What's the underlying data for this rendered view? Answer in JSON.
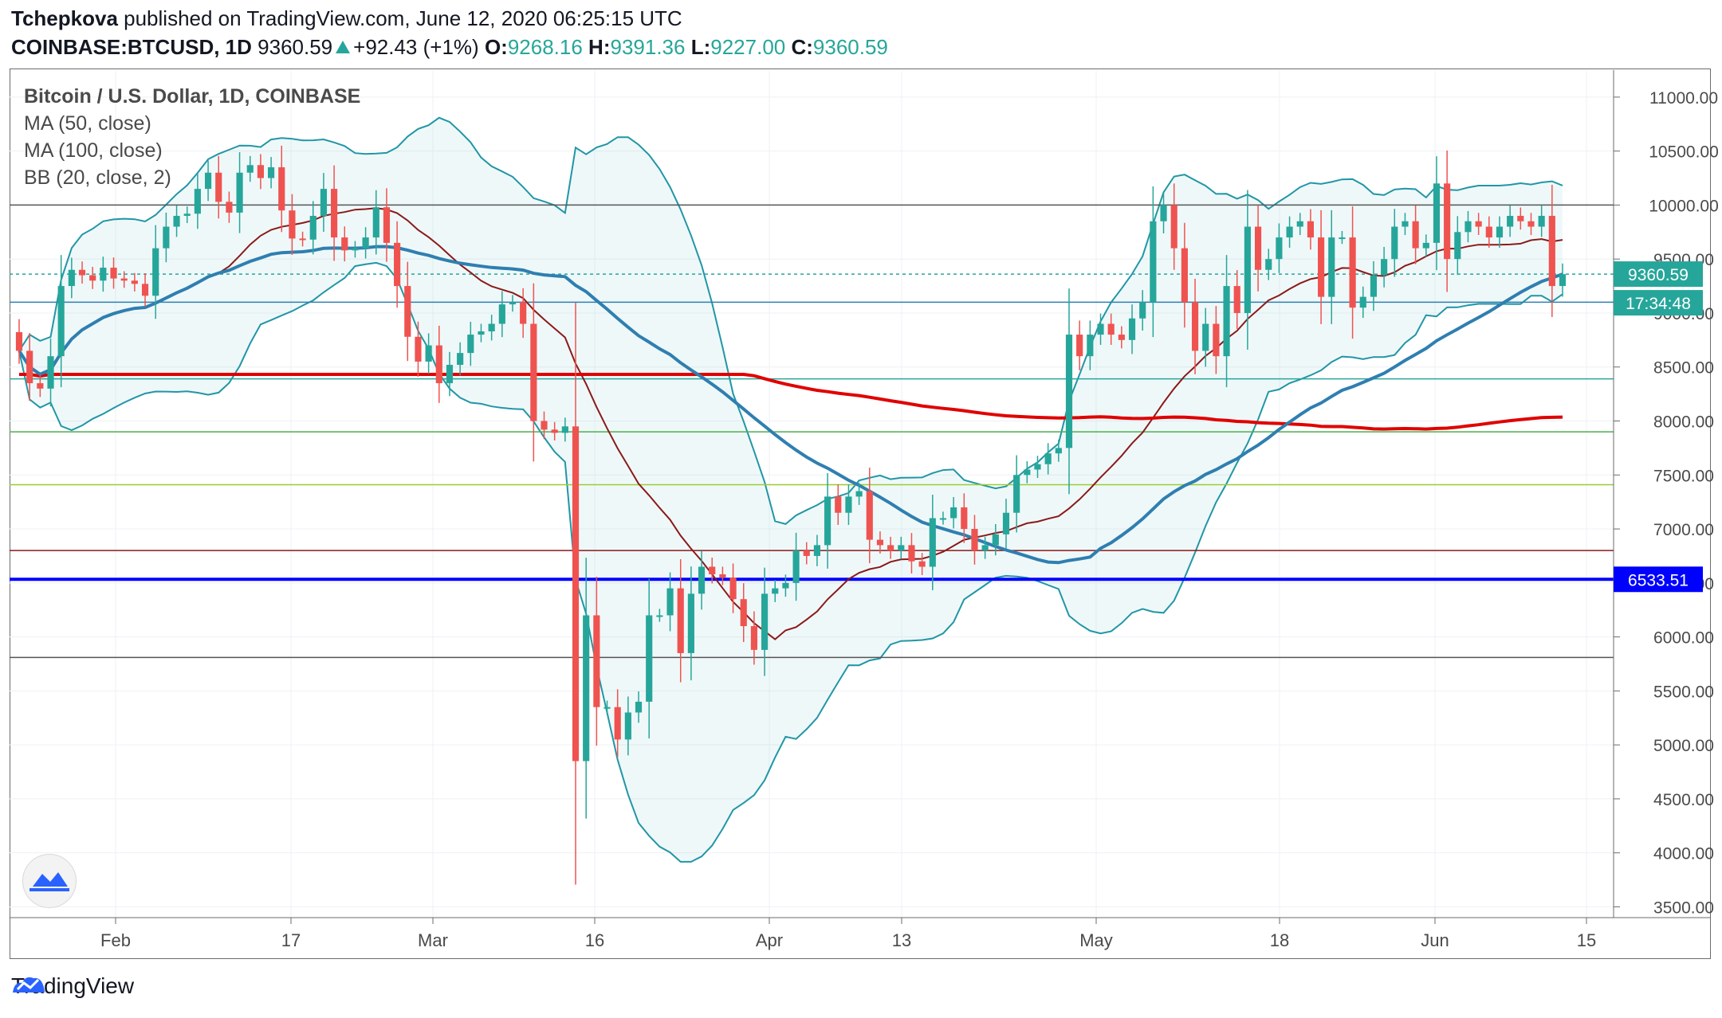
{
  "header": {
    "author": "Tchepkova",
    "published": "published on TradingView.com, June 12, 2020 06:25:15 UTC",
    "symbol": "COINBASE:BTCUSD, 1D",
    "last": "9360.59",
    "change": "+92.43 (+1%)",
    "o_label": "O:",
    "o_val": "9268.16",
    "h_label": "H:",
    "h_val": "9391.36",
    "l_label": "L:",
    "l_val": "9227.00",
    "c_label": "C:",
    "c_val": "9360.59"
  },
  "legend": {
    "title": "Bitcoin / U.S. Dollar, 1D, COINBASE",
    "ma50": "MA (50, close)",
    "ma100": "MA (100, close)",
    "bb": "BB (20, close, 2)"
  },
  "footer": {
    "brand": "TradingView"
  },
  "colors": {
    "up": "#26a69a",
    "down": "#ef5350",
    "bb": "#2196a6",
    "ma50": "#2f7fb0",
    "ma100": "#e00000",
    "mid": "#8b1a1a"
  },
  "chart_data": {
    "type": "candlestick",
    "x_axis_labels": [
      "Feb",
      "17",
      "Mar",
      "16",
      "Apr",
      "13",
      "May",
      "18",
      "Jun",
      "15"
    ],
    "y_ticks": [
      "3500.00",
      "4000.00",
      "4500.00",
      "5000.00",
      "5500.00",
      "6000.00",
      "6500.00",
      "7000.00",
      "7500.00",
      "8000.00",
      "8500.00",
      "9000.00",
      "9500.00",
      "10000.00",
      "10500.00",
      "11000.00"
    ],
    "ylim": [
      3400,
      11250
    ],
    "price_label": "9360.59",
    "countdown_label": "17:34:48",
    "level_label": "6533.51",
    "horizontal_lines": [
      {
        "value": 10000,
        "color": "#555555"
      },
      {
        "value": 9360.59,
        "color": "#26a69a",
        "style": "dashed"
      },
      {
        "value": 9100,
        "color": "#2f7fb0"
      },
      {
        "value": 8390,
        "color": "#26a69a"
      },
      {
        "value": 7900,
        "color": "#4caf50"
      },
      {
        "value": 7410,
        "color": "#9acd32"
      },
      {
        "value": 6800,
        "color": "#8b1a1a"
      },
      {
        "value": 6533.51,
        "color": "#0000ff",
        "width": 4
      },
      {
        "value": 5810,
        "color": "#555555"
      }
    ],
    "close": [
      8650,
      8350,
      8300,
      8600,
      9250,
      9400,
      9350,
      9300,
      9420,
      9320,
      9300,
      9270,
      9160,
      9600,
      9800,
      9900,
      9920,
      10150,
      10300,
      10030,
      9930,
      10300,
      10370,
      10250,
      10350,
      9950,
      9690,
      9680,
      9900,
      10150,
      9700,
      9580,
      9600,
      9700,
      9980,
      9650,
      9250,
      8780,
      8550,
      8700,
      8350,
      8520,
      8630,
      8800,
      8830,
      8900,
      9080,
      9100,
      8900,
      8000,
      7920,
      7890,
      7950,
      4850,
      6200,
      5350,
      5350,
      5050,
      5300,
      5400,
      6200,
      6200,
      6450,
      5850,
      6400,
      6650,
      6580,
      6550,
      6350,
      6100,
      5880,
      6400,
      6450,
      6500,
      6800,
      6750,
      6850,
      7300,
      7150,
      7300,
      7350,
      6900,
      6850,
      6800,
      6850,
      6700,
      6650,
      7100,
      7100,
      7200,
      7000,
      6800,
      6850,
      6950,
      7150,
      7500,
      7550,
      7600,
      7700,
      7750,
      8800,
      8600,
      8800,
      8900,
      8800,
      8750,
      8950,
      9100,
      9850,
      10000,
      9600,
      9100,
      8650,
      8900,
      8600,
      9250,
      9000,
      9800,
      9400,
      9500,
      9700,
      9800,
      9850,
      9700,
      9150,
      9700,
      9700,
      9050,
      9150,
      9350,
      9500,
      9800,
      9850,
      9600,
      9650,
      10200,
      9500,
      9750,
      9850,
      9800,
      9700,
      9800,
      9900,
      9850,
      9800,
      9900,
      9250,
      9360
    ]
  }
}
